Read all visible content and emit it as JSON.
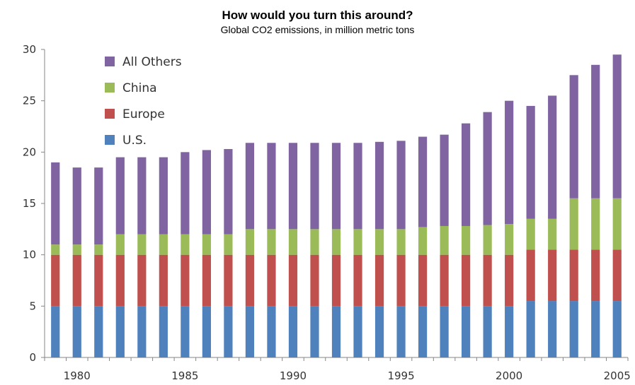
{
  "chart_data": {
    "type": "bar",
    "stacked": true,
    "title": "How would you turn this around?",
    "subtitle": "Global CO2 emissions, in million metric tons",
    "xlabel": "",
    "ylabel": "",
    "ylim": [
      0,
      30
    ],
    "yticks": [
      0,
      5,
      10,
      15,
      20,
      25,
      30
    ],
    "xtick_labels": [
      "1980",
      "1985",
      "1990",
      "1995",
      "2000",
      "2005"
    ],
    "x": [
      1979,
      1980,
      1981,
      1982,
      1983,
      1984,
      1985,
      1986,
      1987,
      1988,
      1989,
      1990,
      1991,
      1992,
      1993,
      1994,
      1995,
      1996,
      1997,
      1998,
      1999,
      2000,
      2001,
      2002,
      2003,
      2004,
      2005
    ],
    "legend_position": "top-left",
    "grid": false,
    "series": [
      {
        "name": "U.S.",
        "color": "#4f81bd",
        "values": [
          5,
          5,
          5,
          5,
          5,
          5,
          5,
          5,
          5,
          5,
          5,
          5,
          5,
          5,
          5,
          5,
          5,
          5,
          5,
          5,
          5,
          5,
          5.5,
          5.5,
          5.5,
          5.5,
          5.5
        ]
      },
      {
        "name": "Europe",
        "color": "#c0504d",
        "values": [
          5,
          5,
          5,
          5,
          5,
          5,
          5,
          5,
          5,
          5,
          5,
          5,
          5,
          5,
          5,
          5,
          5,
          5,
          5,
          5,
          5,
          5,
          5,
          5,
          5,
          5,
          5
        ]
      },
      {
        "name": "China",
        "color": "#9bbb59",
        "values": [
          1,
          1,
          1,
          2,
          2,
          2,
          2,
          2,
          2,
          2.5,
          2.5,
          2.5,
          2.5,
          2.5,
          2.5,
          2.5,
          2.5,
          2.7,
          2.8,
          2.8,
          2.9,
          3,
          3,
          3,
          5,
          5,
          5
        ]
      },
      {
        "name": "All Others",
        "color": "#8064a2",
        "values": [
          8,
          7.5,
          7.5,
          7.5,
          7.5,
          7.5,
          8,
          8.2,
          8.3,
          8.4,
          8.4,
          8.4,
          8.4,
          8.4,
          8.4,
          8.5,
          8.6,
          8.8,
          8.9,
          10,
          11,
          12,
          11,
          12,
          12,
          13,
          14
        ]
      }
    ],
    "legend_order": [
      "All Others",
      "China",
      "Europe",
      "U.S."
    ]
  }
}
